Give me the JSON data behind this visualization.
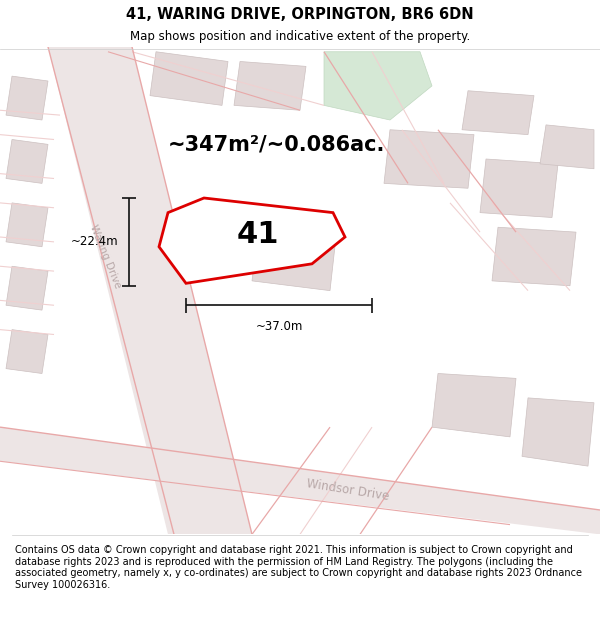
{
  "title": "41, WARING DRIVE, ORPINGTON, BR6 6DN",
  "subtitle": "Map shows position and indicative extent of the property.",
  "area_text": "~347m²/~0.086ac.",
  "plot_number": "41",
  "dim_width": "~37.0m",
  "dim_height": "~22.4m",
  "footnote": "Contains OS data © Crown copyright and database right 2021. This information is subject to Crown copyright and database rights 2023 and is reproduced with the permission of HM Land Registry. The polygons (including the associated geometry, namely x, y co-ordinates) are subject to Crown copyright and database rights 2023 Ordnance Survey 100026316.",
  "bg_color": "#f2eded",
  "road_color_pink": "#e8a8a8",
  "road_color_light": "#f0d0d0",
  "block_color": "#e2d8d8",
  "block_edge": "#ccc0c0",
  "green_color": "#d5e8d5",
  "green_edge": "#c0d8c0",
  "plot_fill": "#ffffff",
  "plot_edge": "#dd0000",
  "road_label_color": "#b8a8a8",
  "dim_line_color": "#111111",
  "waring_drive_label": "Waring Drive",
  "windsor_drive_label": "Windsor Drive",
  "title_fontsize": 10.5,
  "subtitle_fontsize": 8.5,
  "area_fontsize": 15,
  "plot_number_fontsize": 22,
  "footnote_fontsize": 7.0,
  "dim_fontsize": 8.5,
  "road_label_fontsize": 8.5,
  "road_label_small_fontsize": 7.5
}
